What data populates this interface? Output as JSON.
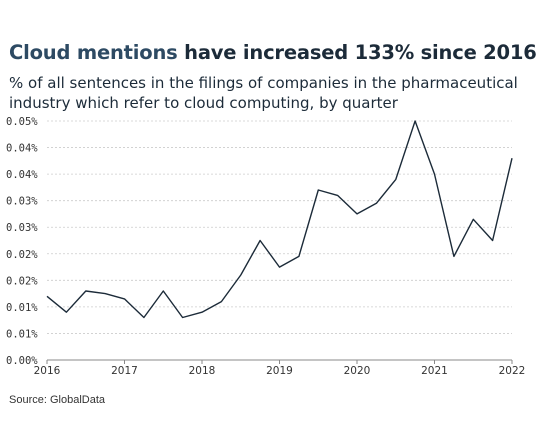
{
  "title_parts": {
    "highlight": "Cloud mentions",
    "rest": " have increased 133% since 2016"
  },
  "subtitle": "% of all sentences in the filings of companies in the pharmaceutical industry which refer to cloud computing, by quarter",
  "source": "Source: GlobalData",
  "colors": {
    "line": "#1c2b39",
    "grid": "#cccccc",
    "axis": "#888888",
    "title": "#1c2b39"
  },
  "chart_data": {
    "type": "line",
    "title": "Cloud mentions have increased 133% since 2016",
    "xlabel": "",
    "ylabel": "",
    "x_ticks": [
      "2016",
      "2017",
      "2018",
      "2019",
      "2020",
      "2021",
      "2022"
    ],
    "y_ticks": [
      "0.00%",
      "0.01%",
      "0.01%",
      "0.02%",
      "0.02%",
      "0.03%",
      "0.03%",
      "0.04%",
      "0.04%",
      "0.05%"
    ],
    "ylim": [
      0,
      0.045
    ],
    "xlim": [
      2016,
      2022
    ],
    "grid": "horizontal",
    "series": [
      {
        "x": [
          2016.0,
          2016.25,
          2016.5,
          2016.75,
          2017.0,
          2017.25,
          2017.5,
          2017.75,
          2018.0,
          2018.25,
          2018.5,
          2018.75,
          2019.0,
          2019.25,
          2019.5,
          2019.75,
          2020.0,
          2020.25,
          2020.5,
          2020.75,
          2021.0,
          2021.25,
          2021.5,
          2021.75,
          2022.0
        ],
        "values": [
          0.012,
          0.009,
          0.013,
          0.0125,
          0.0115,
          0.008,
          0.013,
          0.008,
          0.009,
          0.011,
          0.016,
          0.0225,
          0.0175,
          0.0195,
          0.032,
          0.031,
          0.0275,
          0.0295,
          0.034,
          0.045,
          0.035,
          0.0195,
          0.0265,
          0.0225,
          0.038
        ]
      }
    ]
  }
}
